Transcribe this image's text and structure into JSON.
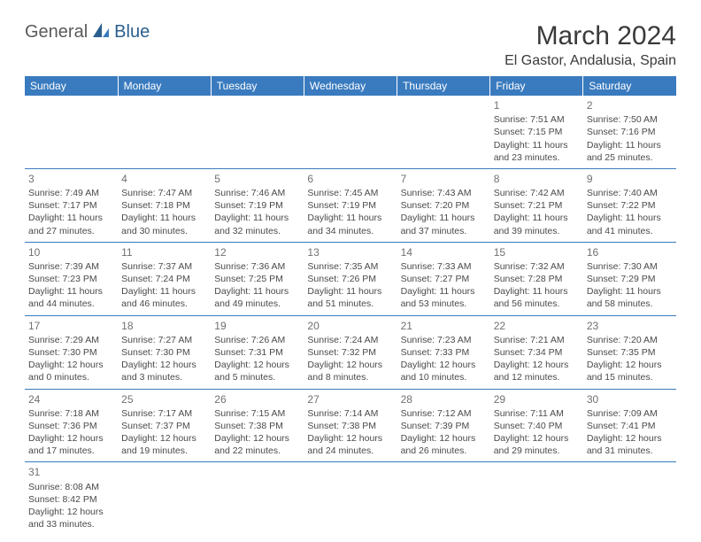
{
  "brand": {
    "part1": "General",
    "part2": "Blue"
  },
  "colors": {
    "header_bg": "#3a7bbf",
    "header_fg": "#ffffff",
    "grid_line": "#3a7bbf",
    "text": "#4a4a4a",
    "daynum": "#707070",
    "title": "#3a3a3a"
  },
  "title": "March 2024",
  "location": "El Gastor, Andalusia, Spain",
  "weekdays": [
    "Sunday",
    "Monday",
    "Tuesday",
    "Wednesday",
    "Thursday",
    "Friday",
    "Saturday"
  ],
  "weeks": [
    [
      null,
      null,
      null,
      null,
      null,
      {
        "d": "1",
        "sunrise": "7:51 AM",
        "sunset": "7:15 PM",
        "daylight": "11 hours and 23 minutes."
      },
      {
        "d": "2",
        "sunrise": "7:50 AM",
        "sunset": "7:16 PM",
        "daylight": "11 hours and 25 minutes."
      }
    ],
    [
      {
        "d": "3",
        "sunrise": "7:49 AM",
        "sunset": "7:17 PM",
        "daylight": "11 hours and 27 minutes."
      },
      {
        "d": "4",
        "sunrise": "7:47 AM",
        "sunset": "7:18 PM",
        "daylight": "11 hours and 30 minutes."
      },
      {
        "d": "5",
        "sunrise": "7:46 AM",
        "sunset": "7:19 PM",
        "daylight": "11 hours and 32 minutes."
      },
      {
        "d": "6",
        "sunrise": "7:45 AM",
        "sunset": "7:19 PM",
        "daylight": "11 hours and 34 minutes."
      },
      {
        "d": "7",
        "sunrise": "7:43 AM",
        "sunset": "7:20 PM",
        "daylight": "11 hours and 37 minutes."
      },
      {
        "d": "8",
        "sunrise": "7:42 AM",
        "sunset": "7:21 PM",
        "daylight": "11 hours and 39 minutes."
      },
      {
        "d": "9",
        "sunrise": "7:40 AM",
        "sunset": "7:22 PM",
        "daylight": "11 hours and 41 minutes."
      }
    ],
    [
      {
        "d": "10",
        "sunrise": "7:39 AM",
        "sunset": "7:23 PM",
        "daylight": "11 hours and 44 minutes."
      },
      {
        "d": "11",
        "sunrise": "7:37 AM",
        "sunset": "7:24 PM",
        "daylight": "11 hours and 46 minutes."
      },
      {
        "d": "12",
        "sunrise": "7:36 AM",
        "sunset": "7:25 PM",
        "daylight": "11 hours and 49 minutes."
      },
      {
        "d": "13",
        "sunrise": "7:35 AM",
        "sunset": "7:26 PM",
        "daylight": "11 hours and 51 minutes."
      },
      {
        "d": "14",
        "sunrise": "7:33 AM",
        "sunset": "7:27 PM",
        "daylight": "11 hours and 53 minutes."
      },
      {
        "d": "15",
        "sunrise": "7:32 AM",
        "sunset": "7:28 PM",
        "daylight": "11 hours and 56 minutes."
      },
      {
        "d": "16",
        "sunrise": "7:30 AM",
        "sunset": "7:29 PM",
        "daylight": "11 hours and 58 minutes."
      }
    ],
    [
      {
        "d": "17",
        "sunrise": "7:29 AM",
        "sunset": "7:30 PM",
        "daylight": "12 hours and 0 minutes."
      },
      {
        "d": "18",
        "sunrise": "7:27 AM",
        "sunset": "7:30 PM",
        "daylight": "12 hours and 3 minutes."
      },
      {
        "d": "19",
        "sunrise": "7:26 AM",
        "sunset": "7:31 PM",
        "daylight": "12 hours and 5 minutes."
      },
      {
        "d": "20",
        "sunrise": "7:24 AM",
        "sunset": "7:32 PM",
        "daylight": "12 hours and 8 minutes."
      },
      {
        "d": "21",
        "sunrise": "7:23 AM",
        "sunset": "7:33 PM",
        "daylight": "12 hours and 10 minutes."
      },
      {
        "d": "22",
        "sunrise": "7:21 AM",
        "sunset": "7:34 PM",
        "daylight": "12 hours and 12 minutes."
      },
      {
        "d": "23",
        "sunrise": "7:20 AM",
        "sunset": "7:35 PM",
        "daylight": "12 hours and 15 minutes."
      }
    ],
    [
      {
        "d": "24",
        "sunrise": "7:18 AM",
        "sunset": "7:36 PM",
        "daylight": "12 hours and 17 minutes."
      },
      {
        "d": "25",
        "sunrise": "7:17 AM",
        "sunset": "7:37 PM",
        "daylight": "12 hours and 19 minutes."
      },
      {
        "d": "26",
        "sunrise": "7:15 AM",
        "sunset": "7:38 PM",
        "daylight": "12 hours and 22 minutes."
      },
      {
        "d": "27",
        "sunrise": "7:14 AM",
        "sunset": "7:38 PM",
        "daylight": "12 hours and 24 minutes."
      },
      {
        "d": "28",
        "sunrise": "7:12 AM",
        "sunset": "7:39 PM",
        "daylight": "12 hours and 26 minutes."
      },
      {
        "d": "29",
        "sunrise": "7:11 AM",
        "sunset": "7:40 PM",
        "daylight": "12 hours and 29 minutes."
      },
      {
        "d": "30",
        "sunrise": "7:09 AM",
        "sunset": "7:41 PM",
        "daylight": "12 hours and 31 minutes."
      }
    ],
    [
      {
        "d": "31",
        "sunrise": "8:08 AM",
        "sunset": "8:42 PM",
        "daylight": "12 hours and 33 minutes."
      },
      null,
      null,
      null,
      null,
      null,
      null
    ]
  ],
  "labels": {
    "sunrise": "Sunrise:",
    "sunset": "Sunset:",
    "daylight": "Daylight:"
  }
}
